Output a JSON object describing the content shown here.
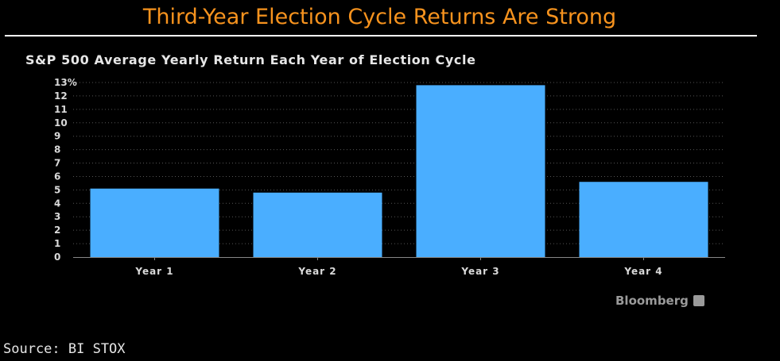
{
  "headline": "Third-Year Election Cycle Returns Are Strong",
  "source": "Source: BI STOX",
  "brand": "Bloomberg",
  "colors": {
    "headline": "#f7931e",
    "bar": "#4aaeff",
    "grid": "#555555",
    "background": "#000000"
  },
  "chart_data": {
    "type": "bar",
    "title": "S&P 500 Average Yearly Return Each Year of Election Cycle",
    "categories": [
      "Year 1",
      "Year 2",
      "Year 3",
      "Year 4"
    ],
    "values": [
      5.1,
      4.8,
      12.8,
      5.6
    ],
    "ylim": [
      0,
      13
    ],
    "yticks": [
      "0",
      "1",
      "2",
      "3",
      "4",
      "5",
      "6",
      "7",
      "8",
      "9",
      "10",
      "11",
      "12",
      "13%"
    ],
    "grid": true,
    "xlabel": "",
    "ylabel": ""
  }
}
